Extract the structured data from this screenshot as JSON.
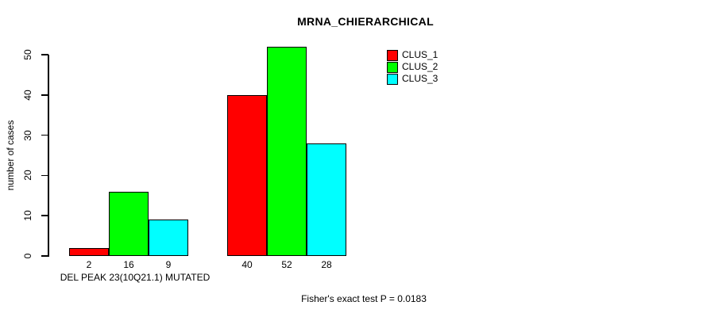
{
  "chart_data": {
    "type": "bar",
    "title": "MRNA_CHIERARCHICAL",
    "ylabel": "number of cases",
    "xlabel": "DEL PEAK 23(10Q21.1) MUTATED",
    "annotation": "Fisher's exact test P = 0.0183",
    "yticks": [
      0,
      10,
      20,
      30,
      40,
      50
    ],
    "ylim": [
      0,
      52
    ],
    "grid": false,
    "legend_position": "top-right",
    "group_count": 2,
    "bar_value_labels_shown": true,
    "series": [
      {
        "name": "CLUS_1",
        "color": "#ff0000",
        "values": [
          2,
          40
        ]
      },
      {
        "name": "CLUS_2",
        "color": "#00ff00",
        "values": [
          16,
          52
        ]
      },
      {
        "name": "CLUS_3",
        "color": "#00ffff",
        "values": [
          9,
          28
        ]
      }
    ]
  }
}
